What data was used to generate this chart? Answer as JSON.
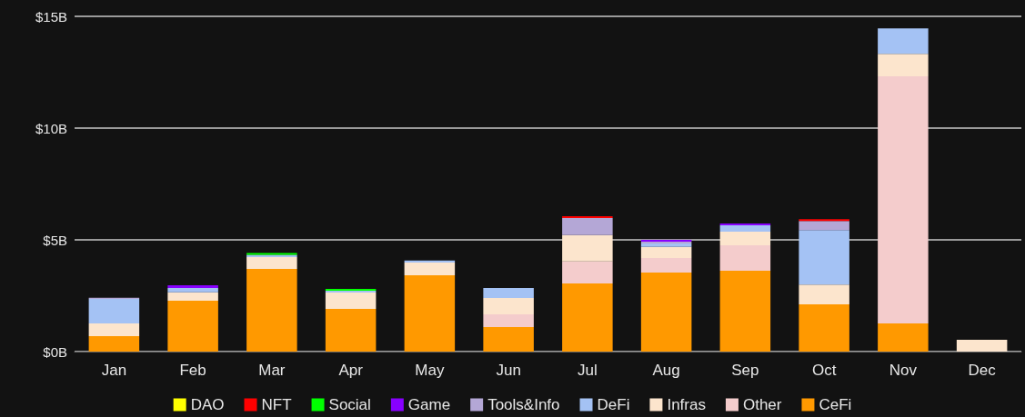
{
  "chart_data": {
    "type": "bar",
    "stacked": true,
    "categories": [
      "Jan",
      "Feb",
      "Mar",
      "Apr",
      "May",
      "Jun",
      "Jul",
      "Aug",
      "Sep",
      "Oct",
      "Nov",
      "Dec"
    ],
    "series": [
      {
        "name": "CeFi",
        "color": "#ff9900",
        "values": [
          0.69,
          2.28,
          3.7,
          1.91,
          3.41,
          1.1,
          3.05,
          3.54,
          3.62,
          2.11,
          1.26,
          0
        ]
      },
      {
        "name": "Other",
        "color": "#f4cccc",
        "values": [
          0,
          0,
          0,
          0,
          0,
          0.57,
          0.98,
          0.65,
          1.14,
          0,
          11.06,
          0
        ]
      },
      {
        "name": "Infras",
        "color": "#fce5cd",
        "values": [
          0.57,
          0.37,
          0.53,
          0.73,
          0.57,
          0.73,
          1.18,
          0.49,
          0.61,
          0.89,
          1.0,
          0.53
        ]
      },
      {
        "name": "DeFi",
        "color": "#a4c2f4",
        "values": [
          1.1,
          0.2,
          0.1,
          0.08,
          0.1,
          0.45,
          0,
          0.16,
          0.28,
          2.44,
          1.14,
          0
        ]
      },
      {
        "name": "Tools&Info",
        "color": "#b4a7d6",
        "values": [
          0.05,
          0,
          0,
          0,
          0,
          0,
          0.77,
          0.08,
          0,
          0.4,
          0,
          0
        ]
      },
      {
        "name": "Game",
        "color": "#8800ff",
        "values": [
          0,
          0.12,
          0,
          0,
          0,
          0,
          0,
          0.08,
          0.08,
          0,
          0,
          0
        ]
      },
      {
        "name": "Social",
        "color": "#00ff00",
        "values": [
          0,
          0,
          0.08,
          0.08,
          0,
          0,
          0,
          0,
          0,
          0,
          0,
          0
        ]
      },
      {
        "name": "NFT",
        "color": "#ff0000",
        "values": [
          0,
          0,
          0,
          0,
          0,
          0,
          0.08,
          0,
          0,
          0.08,
          0,
          0
        ]
      },
      {
        "name": "DAO",
        "color": "#ffff00",
        "values": [
          0,
          0,
          0,
          0,
          0,
          0,
          0,
          0,
          0,
          0,
          0,
          0
        ]
      }
    ],
    "ylim": [
      0,
      15
    ],
    "yticks": [
      {
        "value": 0,
        "label": "$0B"
      },
      {
        "value": 5,
        "label": "$5B"
      },
      {
        "value": 10,
        "label": "$10B"
      },
      {
        "value": 15,
        "label": "$15B"
      }
    ],
    "grid": "y",
    "legend": "bottom"
  }
}
